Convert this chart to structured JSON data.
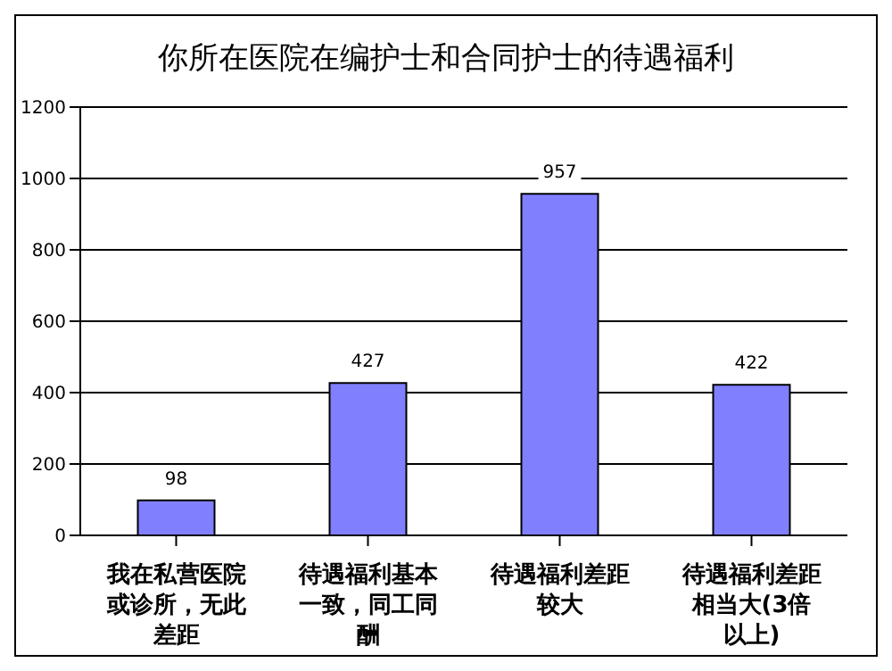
{
  "chart_data": {
    "type": "bar",
    "title": "你所在医院在编护士和合同护士的待遇福利",
    "categories": [
      "我在私营医院或诊所，无此差距",
      "待遇福利基本一致，同工同酬",
      "待遇福利差距较大",
      "待遇福利差距相当大(3倍以上)"
    ],
    "values": [
      98,
      427,
      957,
      422
    ],
    "color": "#8080ff",
    "ylim": [
      0,
      1200
    ],
    "yticks": [
      0,
      200,
      400,
      600,
      800,
      1000,
      1200
    ],
    "grid": "y",
    "data_labels": true
  }
}
